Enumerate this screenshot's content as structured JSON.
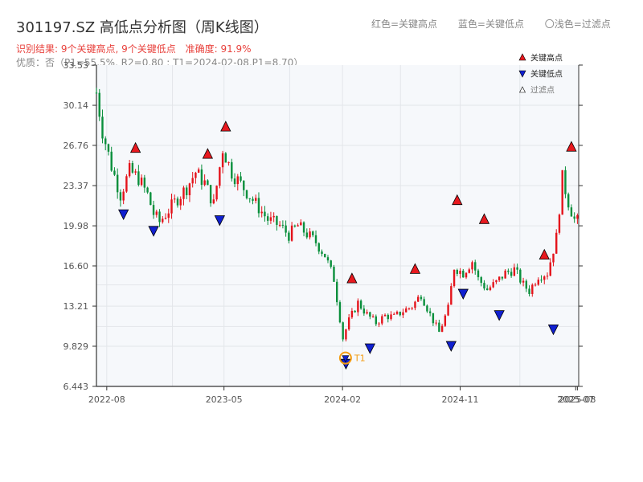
{
  "header": {
    "title": "301197.SZ 高低点分析图（周K线图）",
    "result_text": "识别结果: 9个关键高点, 9个关键低点",
    "accuracy_text": "准确度: 91.9%",
    "quality_text": "优质：否（P1=55.5%, R2=0.80 ; T1=2024-02-08,P1=8.70）",
    "legend_top": [
      "红色=关键高点",
      "蓝色=关键低点",
      "〇浅色=过滤点"
    ]
  },
  "colors": {
    "up": "#e4131b",
    "down": "#0a8f3c",
    "high_marker": "#e8191f",
    "low_marker": "#1020d0",
    "t1": "#f39c12",
    "plot_bg": "#f6f8fb",
    "grid": "#e3e6ea"
  },
  "chart_data": {
    "type": "candlestick",
    "frequency": "weekly",
    "y_ticks": [
      "33.53",
      "30.14",
      "26.76",
      "23.37",
      "19.98",
      "16.60",
      "13.21",
      "9.829",
      "6.443"
    ],
    "ylim": [
      6.443,
      33.53
    ],
    "x_ticks": [
      "2022-08",
      "2023-05",
      "2024-02",
      "2024-11",
      "2025-07",
      "2025-08"
    ],
    "x_start": "2022-07-08",
    "x_end": "2025-08-04",
    "legend": [
      {
        "label": "关键高点",
        "marker": "triangle-up"
      },
      {
        "label": "关键低点",
        "marker": "triangle-down"
      },
      {
        "label": "过滤点",
        "marker": "triangle-up-outline"
      }
    ],
    "price_path": [
      [
        "2022-07-08",
        31.2
      ],
      [
        "2022-07-22",
        28.0
      ],
      [
        "2022-08-12",
        25.0
      ],
      [
        "2022-09-02",
        22.6
      ],
      [
        "2022-09-23",
        24.6
      ],
      [
        "2022-10-14",
        24.0
      ],
      [
        "2022-11-04",
        22.6
      ],
      [
        "2022-11-18",
        21.0
      ],
      [
        "2022-12-02",
        20.3
      ],
      [
        "2022-12-23",
        21.3
      ],
      [
        "2023-01-13",
        22.3
      ],
      [
        "2023-02-03",
        23.2
      ],
      [
        "2023-02-24",
        24.5
      ],
      [
        "2023-03-17",
        23.6
      ],
      [
        "2023-04-07",
        21.8
      ],
      [
        "2023-04-28",
        26.5
      ],
      [
        "2023-05-19",
        24.5
      ],
      [
        "2023-06-09",
        23.5
      ],
      [
        "2023-06-30",
        22.5
      ],
      [
        "2023-07-21",
        21.5
      ],
      [
        "2023-08-11",
        20.5
      ],
      [
        "2023-09-08",
        20.0
      ],
      [
        "2023-09-29",
        19.2
      ],
      [
        "2023-10-20",
        20.0
      ],
      [
        "2023-11-10",
        19.3
      ],
      [
        "2023-12-01",
        18.6
      ],
      [
        "2023-12-22",
        17.5
      ],
      [
        "2024-01-12",
        15.5
      ],
      [
        "2024-02-02",
        10.5
      ],
      [
        "2024-02-16",
        12.0
      ],
      [
        "2024-03-08",
        13.5
      ],
      [
        "2024-03-29",
        12.5
      ],
      [
        "2024-04-19",
        11.8
      ],
      [
        "2024-05-10",
        12.4
      ],
      [
        "2024-05-31",
        12.3
      ],
      [
        "2024-06-21",
        12.8
      ],
      [
        "2024-07-12",
        13.2
      ],
      [
        "2024-08-02",
        14.2
      ],
      [
        "2024-08-23",
        12.5
      ],
      [
        "2024-09-13",
        11.0
      ],
      [
        "2024-10-04",
        13.0
      ],
      [
        "2024-10-18",
        16.5
      ],
      [
        "2024-11-08",
        16.0
      ],
      [
        "2024-11-29",
        17.0
      ],
      [
        "2024-12-13",
        15.5
      ],
      [
        "2025-01-03",
        14.6
      ],
      [
        "2025-01-24",
        15.2
      ],
      [
        "2025-02-14",
        16.0
      ],
      [
        "2025-03-07",
        16.3
      ],
      [
        "2025-03-28",
        15.0
      ],
      [
        "2025-04-11",
        14.5
      ],
      [
        "2025-05-02",
        15.8
      ],
      [
        "2025-05-23",
        16.0
      ],
      [
        "2025-06-13",
        19.0
      ],
      [
        "2025-06-27",
        24.0
      ],
      [
        "2025-07-11",
        22.0
      ],
      [
        "2025-07-25",
        20.5
      ],
      [
        "2025-08-04",
        20.3
      ]
    ],
    "key_highs": [
      {
        "date": "2022-10-07",
        "price": 26.1
      },
      {
        "date": "2023-03-24",
        "price": 25.6
      },
      {
        "date": "2023-05-05",
        "price": 27.9
      },
      {
        "date": "2024-02-23",
        "price": 15.1
      },
      {
        "date": "2024-07-19",
        "price": 15.9
      },
      {
        "date": "2024-10-25",
        "price": 21.7
      },
      {
        "date": "2024-12-27",
        "price": 20.1
      },
      {
        "date": "2025-05-16",
        "price": 17.1
      },
      {
        "date": "2025-07-18",
        "price": 26.2
      }
    ],
    "key_lows": [
      {
        "date": "2022-09-09",
        "price": 21.4
      },
      {
        "date": "2022-11-18",
        "price": 20.0
      },
      {
        "date": "2023-04-21",
        "price": 20.9
      },
      {
        "date": "2024-02-09",
        "price": 8.8
      },
      {
        "date": "2024-04-05",
        "price": 10.1
      },
      {
        "date": "2024-10-11",
        "price": 10.3
      },
      {
        "date": "2024-11-08",
        "price": 14.7
      },
      {
        "date": "2025-01-31",
        "price": 12.9
      },
      {
        "date": "2025-06-06",
        "price": 11.7
      }
    ],
    "t1": {
      "date": "2024-02-08",
      "price": 8.7,
      "label": "T1"
    }
  }
}
